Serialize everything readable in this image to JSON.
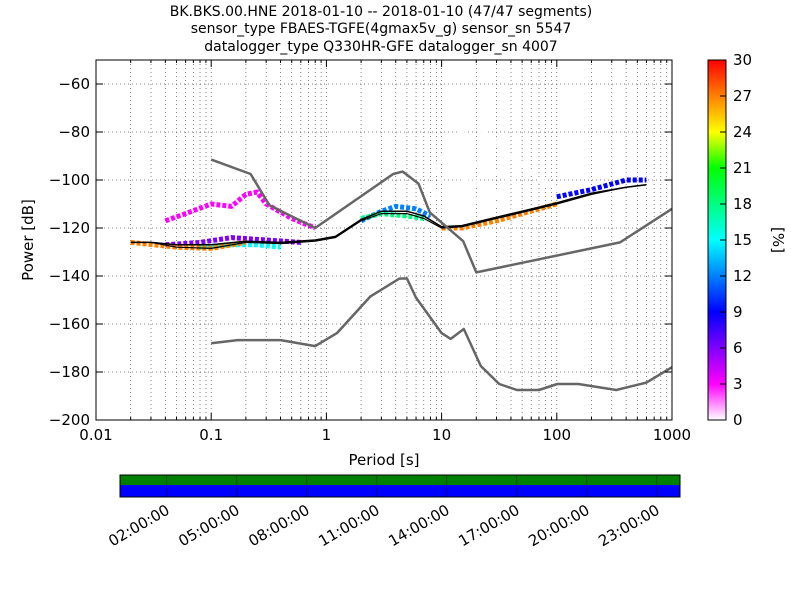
{
  "title_lines": [
    "BK.BKS.00.HNE   2018-01-10 -- 2018-01-10  (47/47 segments)",
    "sensor_type FBAES-TGFE(4gmax5v_g) sensor_sn 5547",
    "datalogger_type Q330HR-GFE datalogger_sn 4007"
  ],
  "chart_data": {
    "type": "heatmap",
    "x_scale": "log",
    "xlabel": "Period [s]",
    "ylabel": "Power [dB]",
    "xlim": [
      0.01,
      1000
    ],
    "ylim": [
      -200,
      -50
    ],
    "x_ticks": [
      0.01,
      0.1,
      1,
      10,
      100,
      1000
    ],
    "x_tick_labels": [
      "0.01",
      "0.1",
      "1",
      "10",
      "100",
      "1000"
    ],
    "y_ticks": [
      -200,
      -180,
      -160,
      -140,
      -120,
      -100,
      -80,
      -60
    ],
    "y_tick_labels": [
      "−200",
      "−180",
      "−160",
      "−140",
      "−120",
      "−100",
      "−80",
      "−60"
    ],
    "grid": "dotted",
    "colorbar": {
      "label": "[%]",
      "range": [
        0,
        30
      ],
      "ticks": [
        0,
        3,
        6,
        9,
        12,
        15,
        18,
        21,
        24,
        27,
        30
      ],
      "colors": [
        "#ffffff",
        "#ff00ff",
        "#8000ff",
        "#0000ff",
        "#0080ff",
        "#00ffff",
        "#00ff80",
        "#00ff00",
        "#ffff00",
        "#ff8000",
        "#ff0000"
      ]
    },
    "noise_models": [
      {
        "id": "nhnm",
        "points": [
          [
            0.1,
            -91.5
          ],
          [
            0.22,
            -97.5
          ],
          [
            0.32,
            -110.5
          ],
          [
            0.8,
            -120
          ],
          [
            3.8,
            -97.5
          ],
          [
            4.6,
            -96.5
          ],
          [
            6.3,
            -101.5
          ],
          [
            7.9,
            -113.5
          ],
          [
            15.4,
            -125.5
          ],
          [
            20,
            -138.5
          ],
          [
            354,
            -126
          ],
          [
            1000,
            -112
          ]
        ]
      },
      {
        "id": "nlnm",
        "points": [
          [
            0.1,
            -168
          ],
          [
            0.17,
            -166.7
          ],
          [
            0.4,
            -166.7
          ],
          [
            0.8,
            -169.2
          ],
          [
            1.24,
            -163.7
          ],
          [
            2.4,
            -148.6
          ],
          [
            4.3,
            -141.1
          ],
          [
            5,
            -141
          ],
          [
            6,
            -149
          ],
          [
            10,
            -163.8
          ],
          [
            12,
            -166.2
          ],
          [
            15.6,
            -162.1
          ],
          [
            21.9,
            -177.5
          ],
          [
            31.6,
            -185
          ],
          [
            45,
            -187.5
          ],
          [
            70,
            -187.5
          ],
          [
            101,
            -185
          ],
          [
            154,
            -185
          ],
          [
            328,
            -187.5
          ],
          [
            600,
            -184.4
          ],
          [
            1000,
            -178
          ]
        ]
      }
    ],
    "mean_curve": {
      "points": [
        [
          0.02,
          -126
        ],
        [
          0.03,
          -126
        ],
        [
          0.05,
          -128
        ],
        [
          0.1,
          -128.5
        ],
        [
          0.2,
          -126
        ],
        [
          0.4,
          -126.5
        ],
        [
          0.8,
          -125.5
        ],
        [
          1.2,
          -124
        ],
        [
          2,
          -117
        ],
        [
          3,
          -114
        ],
        [
          5,
          -114
        ],
        [
          7,
          -116
        ],
        [
          10,
          -120
        ],
        [
          15,
          -119.5
        ],
        [
          30,
          -116
        ],
        [
          50,
          -113.5
        ],
        [
          100,
          -110
        ],
        [
          200,
          -106
        ],
        [
          400,
          -103
        ],
        [
          600,
          -102
        ]
      ]
    },
    "mode_curve": {
      "points": [
        [
          0.02,
          -126
        ],
        [
          0.03,
          -126
        ],
        [
          0.05,
          -127
        ],
        [
          0.1,
          -127
        ],
        [
          0.2,
          -125.5
        ],
        [
          0.4,
          -126
        ],
        [
          0.8,
          -125
        ],
        [
          1.2,
          -123.5
        ],
        [
          2,
          -116.5
        ],
        [
          3,
          -113
        ],
        [
          5,
          -113
        ],
        [
          7,
          -115
        ],
        [
          10,
          -119.5
        ],
        [
          15,
          -119
        ],
        [
          30,
          -115.5
        ],
        [
          50,
          -113
        ],
        [
          100,
          -109.5
        ],
        [
          200,
          -105.5
        ],
        [
          400,
          -103
        ],
        [
          600,
          -102
        ]
      ]
    },
    "density_bands": [
      {
        "value_pct": 2,
        "points": [
          [
            0.04,
            -117
          ],
          [
            0.06,
            -114
          ],
          [
            0.1,
            -110
          ],
          [
            0.15,
            -111
          ],
          [
            0.2,
            -106
          ],
          [
            0.25,
            -105
          ],
          [
            0.3,
            -110
          ],
          [
            0.5,
            -116
          ],
          [
            0.8,
            -120
          ]
        ]
      },
      {
        "value_pct": 1,
        "points": [
          [
            7,
            -112
          ],
          [
            9,
            -95
          ],
          [
            12,
            -83
          ],
          [
            18,
            -77
          ],
          [
            25,
            -81
          ],
          [
            40,
            -89
          ],
          [
            60,
            -97
          ],
          [
            100,
            -104
          ],
          [
            200,
            -106
          ],
          [
            400,
            -98
          ],
          [
            600,
            -98
          ]
        ]
      },
      {
        "value_pct": 1,
        "points": [
          [
            8,
            -110
          ],
          [
            10,
            -100
          ],
          [
            15,
            -92
          ],
          [
            20,
            -93
          ],
          [
            30,
            -97
          ],
          [
            50,
            -103
          ]
        ]
      },
      {
        "value_pct": 1,
        "points": [
          [
            10,
            -105
          ],
          [
            15,
            -100
          ],
          [
            20,
            -101
          ],
          [
            30,
            -106
          ],
          [
            50,
            -111
          ]
        ]
      },
      {
        "value_pct": 1,
        "points": [
          [
            10,
            -112
          ],
          [
            20,
            -108
          ],
          [
            30,
            -110
          ],
          [
            50,
            -115
          ]
        ]
      },
      {
        "value_pct": 1,
        "points": [
          [
            3,
            -122
          ],
          [
            5,
            -118
          ],
          [
            8,
            -119
          ],
          [
            12,
            -122
          ],
          [
            20,
            -121
          ]
        ]
      },
      {
        "value_pct": 5,
        "points": [
          [
            0.04,
            -127
          ],
          [
            0.08,
            -126
          ],
          [
            0.15,
            -124
          ],
          [
            0.3,
            -125
          ],
          [
            0.6,
            -126
          ]
        ]
      },
      {
        "value_pct": 12,
        "points": [
          [
            2,
            -117
          ],
          [
            3,
            -113
          ],
          [
            4,
            -111
          ],
          [
            6,
            -112
          ],
          [
            8,
            -115
          ]
        ]
      },
      {
        "value_pct": 14,
        "points": [
          [
            0.08,
            -128
          ],
          [
            0.15,
            -127
          ],
          [
            0.25,
            -127
          ],
          [
            0.4,
            -128
          ]
        ]
      },
      {
        "value_pct": 19,
        "points": [
          [
            2,
            -116
          ],
          [
            3,
            -114
          ],
          [
            5,
            -115
          ],
          [
            7,
            -116
          ]
        ]
      },
      {
        "value_pct": 27,
        "points": [
          [
            0.02,
            -126
          ],
          [
            0.05,
            -128
          ],
          [
            0.1,
            -128.5
          ],
          [
            0.2,
            -126
          ]
        ]
      },
      {
        "value_pct": 10,
        "points": [
          [
            100,
            -107
          ],
          [
            200,
            -104
          ],
          [
            400,
            -100
          ],
          [
            600,
            -100
          ]
        ]
      },
      {
        "value_pct": 27,
        "points": [
          [
            10,
            -120
          ],
          [
            15,
            -120
          ],
          [
            30,
            -117
          ],
          [
            100,
            -110
          ]
        ]
      }
    ],
    "data_coverage": {
      "tick_labels": [
        "02:00:00",
        "05:00:00",
        "08:00:00",
        "11:00:00",
        "14:00:00",
        "17:00:00",
        "20:00:00",
        "23:00:00"
      ],
      "tick_hours": [
        2,
        5,
        8,
        11,
        14,
        17,
        20,
        23
      ],
      "range_hours": [
        0,
        24
      ],
      "bars": [
        {
          "id": "data",
          "color": "#008000",
          "start": 0,
          "end": 24
        },
        {
          "id": "psd",
          "color": "#0000ff",
          "start": 0,
          "end": 24
        }
      ]
    }
  }
}
